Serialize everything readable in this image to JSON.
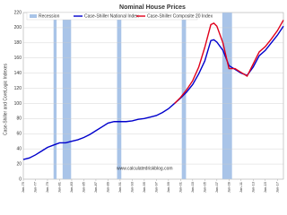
{
  "chart_data": {
    "type": "line",
    "title": "Nominal House Prices",
    "y_label": "Case-Shiller and CoreLogic Indexes",
    "source": "www.calculatedriskblog.com",
    "x": [
      1975,
      1976,
      1977,
      1978,
      1979,
      1980,
      1981,
      1982,
      1983,
      1984,
      1985,
      1986,
      1987,
      1988,
      1989,
      1990,
      1991,
      1992,
      1993,
      1994,
      1995,
      1996,
      1997,
      1998,
      1999,
      2000,
      2001,
      2002,
      2003,
      2004,
      2005,
      2006,
      2006.5,
      2007,
      2008,
      2009,
      2010,
      2011,
      2012,
      2013,
      2014,
      2015,
      2016,
      2017,
      2018
    ],
    "series": [
      {
        "name": "Case-Shiller National Index",
        "color": "#0000cc",
        "values": [
          26,
          28,
          32,
          37,
          42,
          45,
          48,
          48,
          50,
          52,
          55,
          59,
          64,
          69,
          74,
          76,
          76,
          76,
          77,
          79,
          80,
          82,
          84,
          88,
          93,
          100,
          107,
          115,
          125,
          139,
          156,
          183,
          184,
          181,
          170,
          150,
          145,
          140,
          137,
          148,
          163,
          170,
          180,
          190,
          202
        ]
      },
      {
        "name": "Case-Shiller Composite 20 Index",
        "color": "#e0001b",
        "values": [
          null,
          null,
          null,
          null,
          null,
          null,
          null,
          null,
          null,
          null,
          null,
          null,
          null,
          null,
          null,
          null,
          null,
          null,
          null,
          null,
          null,
          null,
          null,
          null,
          null,
          100,
          108,
          118,
          130,
          148,
          174,
          204,
          206,
          202,
          180,
          146,
          146,
          141,
          136,
          152,
          168,
          175,
          185,
          196,
          210
        ]
      }
    ],
    "recessions": {
      "name": "Recession",
      "color": "#a9c4e8",
      "spans": [
        [
          1980.0,
          1980.5
        ],
        [
          1981.5,
          1982.9
        ],
        [
          1990.5,
          1991.2
        ],
        [
          2001.2,
          2001.9
        ],
        [
          2007.9,
          2009.5
        ]
      ]
    },
    "xlim": [
      1975,
      2018
    ],
    "xticks": [
      {
        "value": 1975,
        "label": "Jan-75"
      },
      {
        "value": 1977,
        "label": "Jan-77"
      },
      {
        "value": 1979,
        "label": "Jan-79"
      },
      {
        "value": 1981,
        "label": "Jan-81"
      },
      {
        "value": 1983,
        "label": "Jan-83"
      },
      {
        "value": 1985,
        "label": "Jan-85"
      },
      {
        "value": 1987,
        "label": "Jan-87"
      },
      {
        "value": 1989,
        "label": "Jan-89"
      },
      {
        "value": 1991,
        "label": "Jan-91"
      },
      {
        "value": 1993,
        "label": "Jan-93"
      },
      {
        "value": 1995,
        "label": "Jan-95"
      },
      {
        "value": 1997,
        "label": "Jan-97"
      },
      {
        "value": 1999,
        "label": "Jan-99"
      },
      {
        "value": 2001,
        "label": "Jan-01"
      },
      {
        "value": 2003,
        "label": "Jan-03"
      },
      {
        "value": 2005,
        "label": "Jan-05"
      },
      {
        "value": 2007,
        "label": "Jan-07"
      },
      {
        "value": 2009,
        "label": "Jan-09"
      },
      {
        "value": 2011,
        "label": "Jan-11"
      },
      {
        "value": 2013,
        "label": "Jan-13"
      },
      {
        "value": 2015,
        "label": "Jan-15"
      },
      {
        "value": 2017,
        "label": "Jan-17"
      }
    ],
    "ylim": [
      0,
      220
    ],
    "yticks": [
      0,
      20,
      40,
      60,
      80,
      100,
      120,
      140,
      160,
      180,
      200,
      220
    ],
    "grid": true
  }
}
